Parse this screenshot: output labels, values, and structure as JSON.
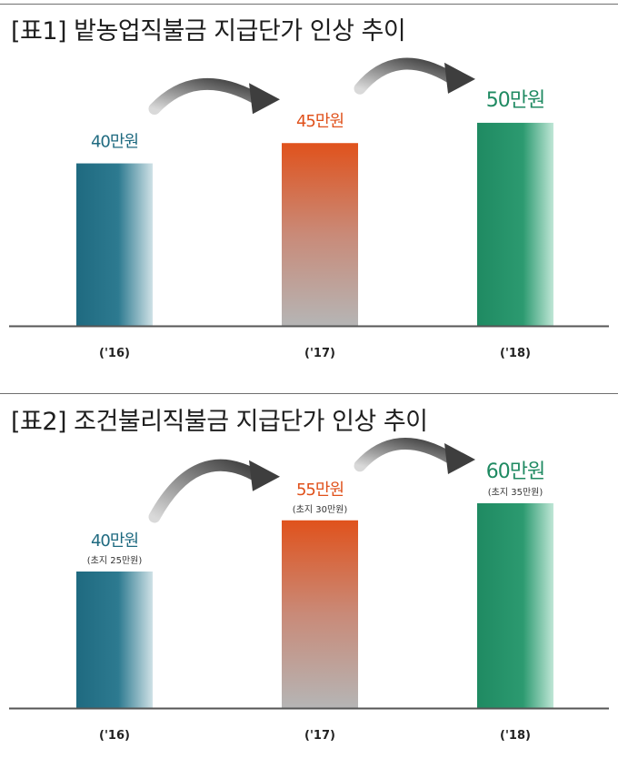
{
  "chart_data": [
    {
      "type": "bar",
      "title": "[표1] 밭농업직불금 지급단가 인상 추이",
      "categories": [
        "('16)",
        "('17)",
        "('18)"
      ],
      "values": [
        40,
        45,
        50
      ],
      "value_labels": [
        "40만원",
        "45만원",
        "50만원"
      ],
      "sub_labels": [
        "",
        "",
        ""
      ],
      "ylim": [
        0,
        65
      ],
      "colors": [
        "#1f6a80",
        "#e0521c",
        "#1f8a62"
      ]
    },
    {
      "type": "bar",
      "title": "[표2] 조건불리직불금 지급단가 인상 추이",
      "categories": [
        "('16)",
        "('17)",
        "('18)"
      ],
      "values": [
        40,
        55,
        60
      ],
      "value_labels": [
        "40만원",
        "55만원",
        "60만원"
      ],
      "sub_labels": [
        "(초지 25만원)",
        "(초지 30만원)",
        "(초지 35만원)"
      ],
      "ylim": [
        0,
        80
      ],
      "colors": [
        "#1f6a80",
        "#e0521c",
        "#1f8a62"
      ]
    }
  ]
}
